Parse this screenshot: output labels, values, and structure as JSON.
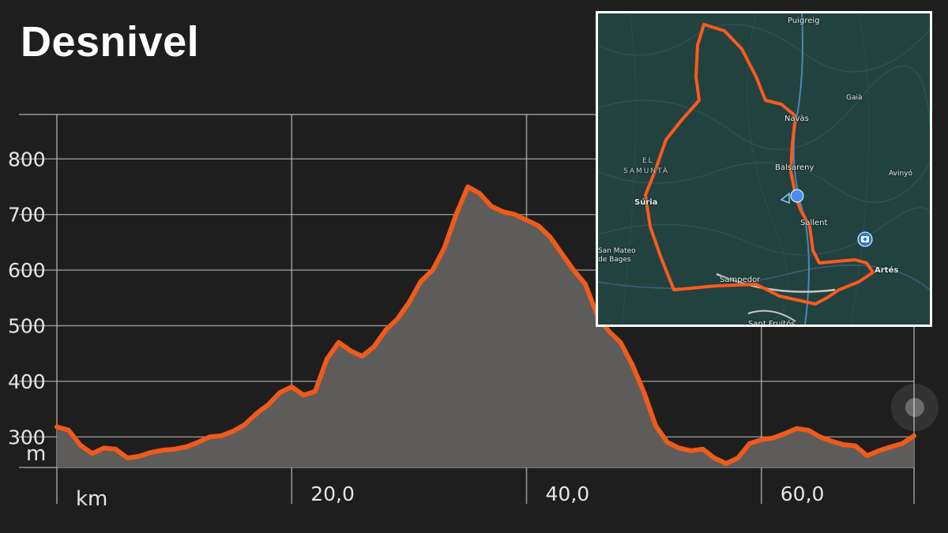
{
  "title": "Desnivel",
  "chart_data": {
    "type": "area",
    "title": "Desnivel",
    "xlabel": "km",
    "ylabel": "m",
    "xlim": [
      0,
      73
    ],
    "ylim": [
      245,
      880
    ],
    "x_ticks": [
      20,
      40,
      60
    ],
    "x_tick_labels": [
      "20,0",
      "40,0",
      "60,0"
    ],
    "y_ticks": [
      300,
      400,
      500,
      600,
      700,
      800
    ],
    "y_tick_labels": [
      "300",
      "400",
      "500",
      "600",
      "700",
      "800"
    ],
    "grid": true,
    "line_color": "#f05a1a",
    "fill_color": "#5d5c5a",
    "series": [
      {
        "x": [
          0,
          1,
          2,
          3,
          4,
          5,
          6,
          7,
          8,
          9,
          10,
          11,
          12,
          13,
          14,
          15,
          16,
          17,
          18,
          19,
          20,
          21,
          22,
          23,
          24,
          25,
          26,
          27,
          28,
          29,
          30,
          31,
          32,
          33,
          34,
          35,
          36,
          37,
          38,
          39,
          40,
          41,
          42,
          43,
          44,
          45,
          46,
          47,
          48,
          49,
          50,
          51,
          52,
          53,
          54,
          55,
          56,
          57,
          58,
          59,
          60,
          61,
          62,
          63,
          64,
          65,
          66,
          67,
          68,
          69,
          70,
          71,
          72,
          73
        ],
        "values": [
          318,
          312,
          285,
          270,
          280,
          278,
          262,
          265,
          272,
          276,
          278,
          282,
          290,
          300,
          302,
          310,
          322,
          342,
          358,
          380,
          390,
          375,
          382,
          440,
          470,
          455,
          445,
          462,
          492,
          512,
          542,
          580,
          600,
          640,
          700,
          750,
          738,
          715,
          705,
          700,
          690,
          680,
          660,
          630,
          600,
          575,
          520,
          490,
          470,
          430,
          380,
          320,
          290,
          280,
          275,
          278,
          262,
          252,
          262,
          288,
          295,
          298,
          306,
          315,
          312,
          300,
          292,
          286,
          284,
          266,
          275,
          282,
          288,
          302
        ]
      }
    ]
  },
  "map": {
    "places": [
      "Puigreig",
      "Gaià",
      "Navàs",
      "EL",
      "SAMUNTÀ",
      "Balsareny",
      "Avinyó",
      "Súria",
      "Sallent",
      "San Mateo",
      "de Bages",
      "Artés",
      "Sampedor",
      "Sant Fruitós"
    ],
    "route_color": "#ff5a1f",
    "land_color": "#22423f",
    "position_marker": "location-dot-icon",
    "photo_marker": "camera-icon"
  }
}
